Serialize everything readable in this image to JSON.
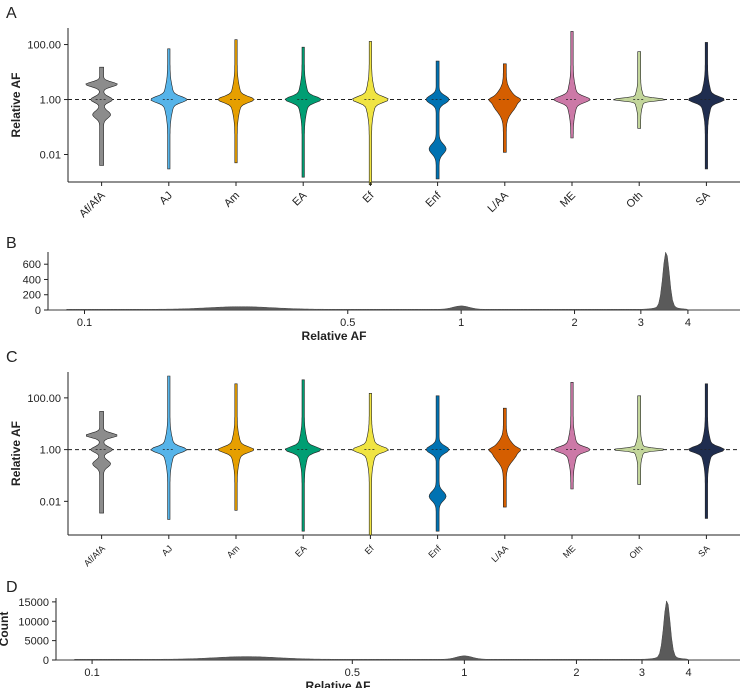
{
  "figure": {
    "panels": [
      {
        "label": "A"
      },
      {
        "label": "B"
      },
      {
        "label": "C"
      },
      {
        "label": "D"
      }
    ]
  },
  "chart_data": [
    {
      "panel": "A",
      "type": "violin",
      "ylabel": "Relative AF",
      "yscale": "log10",
      "ylim": [
        0.001,
        400
      ],
      "yticks": [
        100,
        1,
        0.01
      ],
      "ytick_labels": [
        "100.00",
        "1.00",
        "0.01"
      ],
      "reference_line": 1,
      "categories": [
        "Af/AfA",
        "AJ",
        "Am",
        "EA",
        "Ef",
        "Enf",
        "L/AA",
        "ME",
        "Oth",
        "SA"
      ],
      "colors": [
        "#8c8c8c",
        "#56b4e9",
        "#e69f00",
        "#009e73",
        "#f0e442",
        "#0072b2",
        "#d55e00",
        "#cc79a7",
        "#c3d69b",
        "#1f2d4f"
      ],
      "range_min": [
        0.004,
        0.003,
        0.005,
        0.0015,
        0.0008,
        0.0013,
        0.012,
        0.04,
        0.09,
        0.003
      ],
      "range_max": [
        15,
        70,
        150,
        80,
        130,
        25,
        20,
        300,
        55,
        120
      ],
      "medians": [
        1,
        1,
        1,
        1,
        1,
        1,
        1,
        1,
        1,
        1
      ]
    },
    {
      "panel": "B",
      "type": "histogram",
      "ylabel": "Count",
      "xlabel": "Relative AF",
      "xscale": "log10",
      "xlim": [
        0.08,
        5.5
      ],
      "ylim": [
        0,
        760
      ],
      "xticks": [
        0.1,
        0.5,
        1,
        2,
        3,
        4
      ],
      "xtick_labels": [
        "0.1",
        "0.5",
        "1",
        "2",
        "3",
        "4"
      ],
      "yticks": [
        0,
        200,
        400,
        600
      ],
      "ytick_labels": [
        "0",
        "200",
        "400",
        "600"
      ],
      "peak_x": 3.5,
      "peak_count": 720,
      "secondary_bumps": [
        {
          "x": 0.26,
          "count": 35
        },
        {
          "x": 1.0,
          "count": 45
        }
      ]
    },
    {
      "panel": "C",
      "type": "violin",
      "ylabel": "Relative AF",
      "yscale": "log10",
      "ylim": [
        0.0005,
        1000
      ],
      "yticks": [
        100,
        1,
        0.01
      ],
      "ytick_labels": [
        "100.00",
        "1.00",
        "0.01"
      ],
      "reference_line": 1,
      "categories": [
        "Af/AfA",
        "AJ",
        "Am",
        "EA",
        "Ef",
        "Enf",
        "L/AA",
        "ME",
        "Oth",
        "SA"
      ],
      "colors": [
        "#8c8c8c",
        "#56b4e9",
        "#e69f00",
        "#009e73",
        "#f0e442",
        "#0072b2",
        "#d55e00",
        "#cc79a7",
        "#c3d69b",
        "#1f2d4f"
      ],
      "range_min": [
        0.0035,
        0.002,
        0.0045,
        0.0007,
        0.0005,
        0.0007,
        0.006,
        0.03,
        0.045,
        0.0022
      ],
      "range_max": [
        30,
        700,
        350,
        500,
        150,
        120,
        40,
        400,
        120,
        350
      ],
      "medians": [
        1,
        1,
        1,
        1,
        1,
        1,
        1,
        1,
        1,
        1
      ]
    },
    {
      "panel": "D",
      "type": "histogram",
      "ylabel": "Count",
      "xlabel": "Relative AF",
      "xscale": "log10",
      "xlim": [
        0.08,
        5.5
      ],
      "ylim": [
        0,
        16000
      ],
      "xticks": [
        0.1,
        0.5,
        1,
        2,
        3,
        4
      ],
      "xtick_labels": [
        "0.1",
        "0.5",
        "1",
        "2",
        "3",
        "4"
      ],
      "yticks": [
        0,
        5000,
        10000,
        15000
      ],
      "ytick_labels": [
        "0",
        "5000",
        "10000",
        "15000"
      ],
      "peak_x": 3.5,
      "peak_count": 14500,
      "secondary_bumps": [
        {
          "x": 0.26,
          "count": 700
        },
        {
          "x": 1.0,
          "count": 900
        }
      ]
    }
  ]
}
